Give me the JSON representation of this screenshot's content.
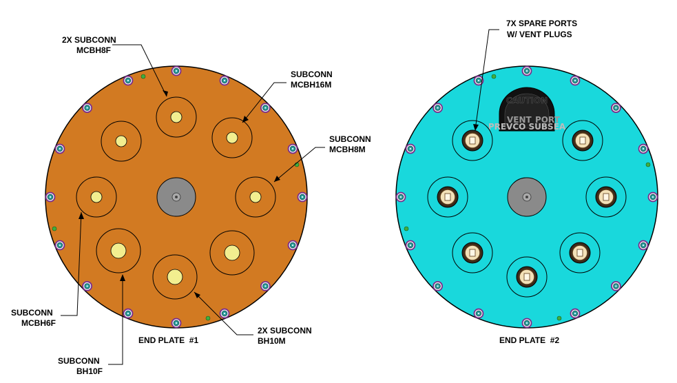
{
  "plate1": {
    "title": "END PLATE  #1",
    "color": "#d27a22",
    "labels": {
      "mcbh8f": [
        "2X SUBCONN",
        "MCBH8F"
      ],
      "mcbh16m": [
        "SUBCONN",
        "MCBH16M"
      ],
      "mcbh8m": [
        "SUBCONN",
        "MCBH8M"
      ],
      "mcbh6f": [
        "SUBCONN",
        "MCBH6F"
      ],
      "bh10f": [
        "SUBCONN",
        "BH10F"
      ],
      "bh10m": [
        "2X SUBCONN",
        "BH10M"
      ]
    }
  },
  "plate2": {
    "title": "END PLATE  #2",
    "color": "#19d8dc",
    "labels": {
      "spare": [
        "7X SPARE PORTS",
        "W/ VENT PLUGS"
      ]
    },
    "caution_badge": {
      "line1": "CAUTION",
      "left": "VENT",
      "right": "PORT",
      "bottom": "PREVCO SUBSEA"
    }
  },
  "colors": {
    "bolt_ring": "#7a2d8c",
    "bolt_center": "#2a9a9a",
    "green_dot": "#3fae3f",
    "connector_fill": "#f2ee8f",
    "center_hub": "#8a8a8a",
    "vent_plug": "#f3e1b8"
  }
}
